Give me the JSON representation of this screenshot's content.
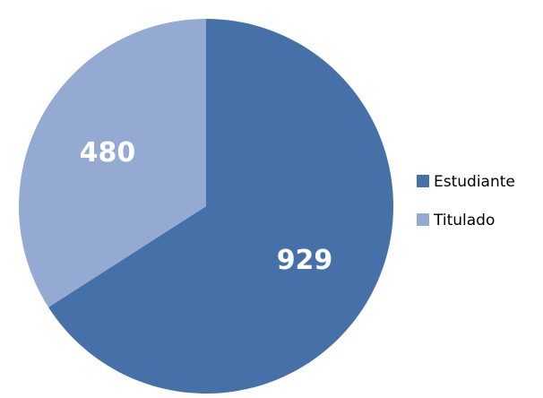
{
  "chart_data": {
    "type": "pie",
    "title": "",
    "slices": [
      {
        "name": "Estudiante",
        "value": 929,
        "color": "#4670A8"
      },
      {
        "name": "Titulado",
        "value": 480,
        "color": "#95AAD3"
      }
    ],
    "start_angle_deg": 0,
    "direction": "clockwise",
    "data_labels": true,
    "legend": {
      "position": "right",
      "items": [
        {
          "label": "Estudiante",
          "color": "#4670A8"
        },
        {
          "label": "Titulado",
          "color": "#95AAD3"
        }
      ]
    }
  }
}
